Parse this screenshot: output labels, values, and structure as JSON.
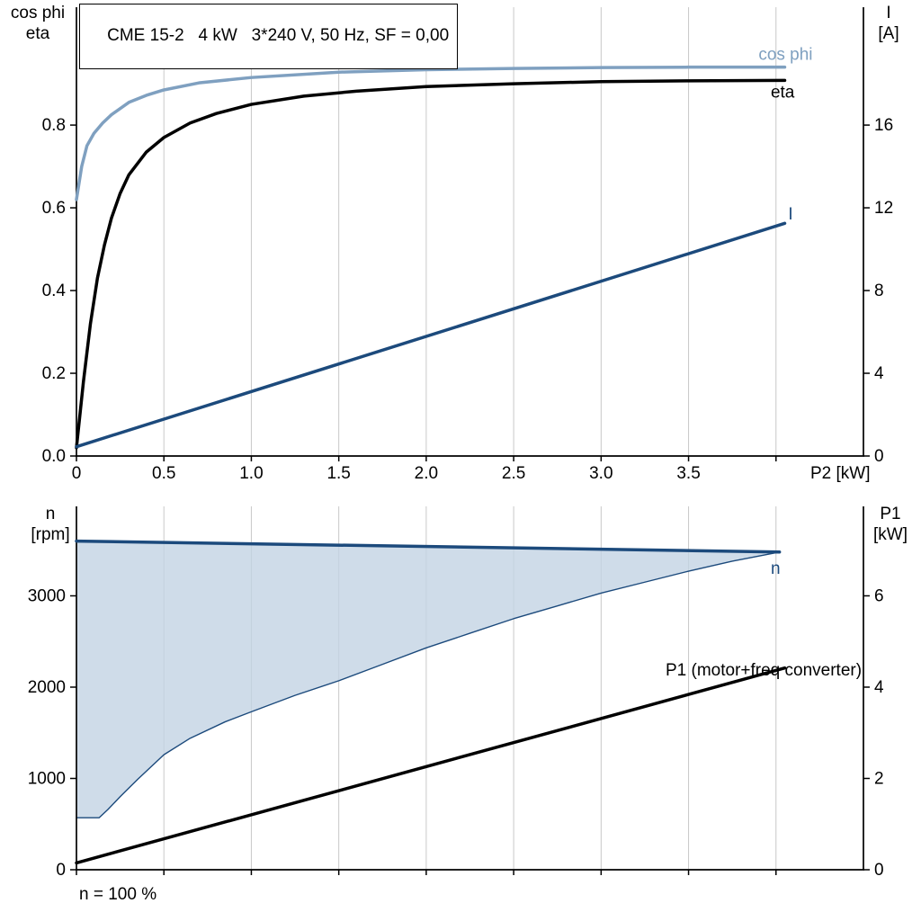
{
  "colors": {
    "cosphi": "#7fa0c0",
    "blue": "#1c4a7c",
    "black": "#000000",
    "band_fill": "#c3d3e4",
    "grid": "#c8c8c8",
    "axis": "#000000"
  },
  "chart_data": [
    {
      "id": "top",
      "type": "line",
      "title": "CME 15-2   4 kW   3*240 V, 50 Hz, SF = 0,00",
      "x_axis": {
        "label": "P2 [kW]",
        "lim": [
          0,
          4.5
        ],
        "ticks": [
          0,
          0.5,
          1,
          1.5,
          2,
          2.5,
          3,
          3.5,
          4
        ],
        "tick_labels": [
          "0",
          "0.5",
          "1.0",
          "1.5",
          "2.0",
          "2.5",
          "3.0",
          "3.5",
          ""
        ]
      },
      "left_axis": {
        "header": [
          "cos phi",
          "eta"
        ],
        "lim": [
          0,
          1.085
        ],
        "ticks": [
          0,
          0.2,
          0.4,
          0.6,
          0.8
        ],
        "tick_labels": [
          "0.0",
          "0.2",
          "0.4",
          "0.6",
          "0.8"
        ]
      },
      "right_axis": {
        "header": [
          "I",
          "[A]"
        ],
        "lim": [
          0,
          21.7
        ],
        "ticks": [
          0,
          4,
          8,
          12,
          16
        ],
        "tick_labels": [
          "0",
          "4",
          "8",
          "12",
          "16"
        ]
      },
      "series": [
        {
          "id": "cos-phi-curve",
          "name": "cos phi",
          "axis": "left",
          "color": "cosphi",
          "width": 3.5,
          "x": [
            0,
            0.03,
            0.06,
            0.1,
            0.15,
            0.2,
            0.3,
            0.4,
            0.5,
            0.7,
            1.0,
            1.5,
            2.0,
            2.5,
            3.0,
            3.5,
            4.05
          ],
          "y": [
            0.62,
            0.7,
            0.75,
            0.78,
            0.805,
            0.825,
            0.855,
            0.872,
            0.885,
            0.902,
            0.915,
            0.928,
            0.934,
            0.937,
            0.939,
            0.94,
            0.94
          ]
        },
        {
          "id": "eta-curve",
          "name": "eta",
          "axis": "left",
          "color": "black",
          "width": 3.5,
          "x": [
            0,
            0.04,
            0.08,
            0.12,
            0.16,
            0.2,
            0.25,
            0.3,
            0.4,
            0.5,
            0.65,
            0.8,
            1.0,
            1.3,
            1.6,
            2.0,
            2.5,
            3.0,
            3.5,
            4.05
          ],
          "y": [
            0.02,
            0.18,
            0.32,
            0.43,
            0.51,
            0.575,
            0.635,
            0.68,
            0.735,
            0.77,
            0.805,
            0.828,
            0.85,
            0.87,
            0.882,
            0.893,
            0.9,
            0.905,
            0.907,
            0.908
          ]
        },
        {
          "id": "current-curve",
          "name": "I",
          "axis": "right",
          "color": "blue",
          "width": 3.5,
          "x": [
            0,
            4.05
          ],
          "y": [
            0.45,
            11.25
          ]
        }
      ],
      "labels": [
        {
          "text": "cos phi",
          "axis": "left",
          "x": 3.9,
          "y": 0.958,
          "color": "cosphi",
          "anchor": "start"
        },
        {
          "text": "eta",
          "axis": "left",
          "x": 3.97,
          "y": 0.867,
          "color": "black",
          "anchor": "start"
        },
        {
          "text": "I",
          "axis": "right",
          "x": 4.07,
          "y": 11.44,
          "color": "blue",
          "anchor": "start"
        }
      ]
    },
    {
      "id": "bottom",
      "type": "line",
      "note": "n = 100 %",
      "x_axis": {
        "label": "",
        "lim": [
          0,
          4.5
        ],
        "ticks": [
          0,
          0.5,
          1,
          1.5,
          2,
          2.5,
          3,
          3.5,
          4
        ],
        "tick_labels": [
          "",
          "",
          "",
          "",
          "",
          "",
          "",
          "",
          ""
        ]
      },
      "left_axis": {
        "header": [
          "n",
          "[rpm]"
        ],
        "lim": [
          0,
          3980
        ],
        "ticks": [
          0,
          1000,
          2000,
          3000
        ],
        "tick_labels": [
          "0",
          "1000",
          "2000",
          "3000"
        ]
      },
      "right_axis": {
        "header": [
          "P1",
          "[kW]"
        ],
        "lim": [
          0,
          7.96
        ],
        "ticks": [
          0,
          2,
          4,
          6
        ],
        "tick_labels": [
          "0",
          "2",
          "4",
          "6"
        ]
      },
      "bands": [
        {
          "id": "speed-range-band",
          "axis": "left",
          "fill": "band_fill",
          "stroke": "blue",
          "upper": {
            "x": [
              0,
              4.02
            ],
            "y": [
              3600,
              3480
            ]
          },
          "lower": {
            "x": [
              0,
              0.13,
              0.18,
              0.25,
              0.35,
              0.5,
              0.65,
              0.85,
              1.0,
              1.25,
              1.5,
              1.75,
              2.0,
              2.25,
              2.5,
              2.75,
              3.0,
              3.25,
              3.5,
              3.75,
              4.02
            ],
            "y": [
              570,
              570,
              660,
              800,
              990,
              1260,
              1440,
              1620,
              1730,
              1910,
              2070,
              2250,
              2430,
              2590,
              2750,
              2890,
              3030,
              3150,
              3270,
              3380,
              3480
            ]
          }
        }
      ],
      "series": [
        {
          "id": "speed-curve",
          "name": "n",
          "axis": "left",
          "color": "blue",
          "width": 3.5,
          "x": [
            0,
            4.02
          ],
          "y": [
            3600,
            3480
          ]
        },
        {
          "id": "p1-curve",
          "name": "P1 (motor+freq converter)",
          "axis": "right",
          "color": "black",
          "width": 3.5,
          "x": [
            0,
            4.05
          ],
          "y": [
            0.15,
            4.42
          ]
        }
      ],
      "labels": [
        {
          "text": "n",
          "axis": "left",
          "x": 3.97,
          "y": 3240,
          "color": "blue",
          "anchor": "start"
        },
        {
          "text": "P1 (motor+freq converter)",
          "axis": "right",
          "x": 4.49,
          "y": 4.26,
          "color": "black",
          "anchor": "end"
        }
      ]
    }
  ]
}
